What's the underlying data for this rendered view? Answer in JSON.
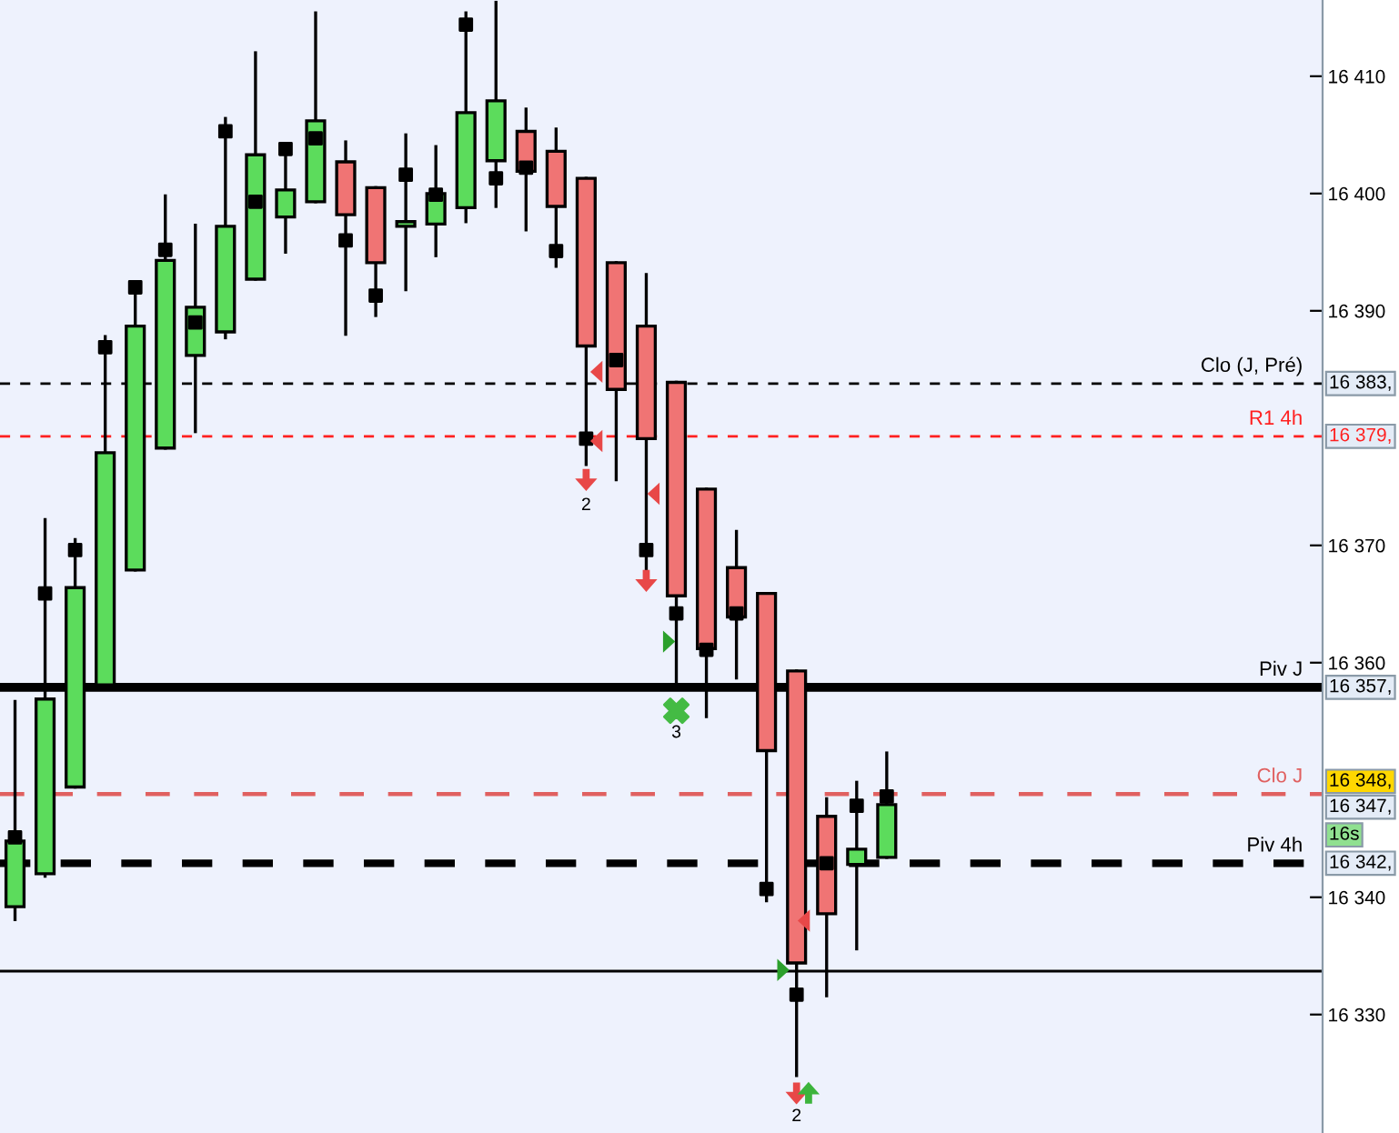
{
  "chart_data": {
    "type": "candlestick",
    "categories": [
      null,
      null,
      null,
      null,
      null,
      null,
      null,
      null,
      null,
      null,
      null,
      null,
      null,
      null,
      null,
      null,
      null,
      null,
      null,
      null,
      null,
      null,
      null,
      null,
      null,
      null,
      null,
      null,
      null,
      null,
      null,
      null,
      null,
      null,
      null,
      null,
      null,
      null,
      null,
      null,
      null,
      null,
      null,
      null
    ],
    "ohlc": [
      [
        16339.2,
        16356.7,
        16338.1,
        16344.8
      ],
      [
        16342.0,
        16372.2,
        16341.8,
        16356.9
      ],
      [
        16349.4,
        16370.5,
        16349.4,
        16366.4
      ],
      [
        16358.1,
        16387.8,
        16358.1,
        16377.9
      ],
      [
        16367.9,
        16392.4,
        16367.9,
        16388.7
      ],
      [
        16378.3,
        16399.8,
        16378.3,
        16394.3
      ],
      [
        16386.2,
        16397.3,
        16379.7,
        16390.3
      ],
      [
        16388.2,
        16406.4,
        16387.7,
        16397.2
      ],
      [
        16392.7,
        16412.0,
        16392.7,
        16403.3
      ],
      [
        16398.0,
        16404.1,
        16395.0,
        16400.3
      ],
      [
        16399.3,
        16415.4,
        16399.3,
        16406.2
      ],
      [
        16402.7,
        16404.4,
        16388.0,
        16398.2
      ],
      [
        16400.5,
        16400.5,
        16389.6,
        16394.1
      ],
      [
        16397.2,
        16405.0,
        16391.8,
        16397.6
      ],
      [
        16397.4,
        16404.0,
        16394.7,
        16400.0
      ],
      [
        16398.8,
        16415.4,
        16397.6,
        16406.9
      ],
      [
        16402.8,
        16416.3,
        16398.9,
        16407.9
      ],
      [
        16405.3,
        16407.2,
        16396.9,
        16401.9
      ],
      [
        16403.6,
        16405.5,
        16393.8,
        16398.9
      ],
      [
        16401.3,
        16401.3,
        16376.9,
        16387.0
      ],
      [
        16394.1,
        16394.1,
        16375.6,
        16383.3
      ],
      [
        16388.7,
        16393.1,
        16368.0,
        16379.1
      ],
      [
        16383.9,
        16383.9,
        16358.1,
        16365.7
      ],
      [
        16374.8,
        16374.8,
        16355.4,
        16361.2
      ],
      [
        16368.1,
        16371.2,
        16358.7,
        16363.9
      ],
      [
        16365.9,
        16365.9,
        16339.7,
        16352.5
      ],
      [
        16359.3,
        16359.3,
        16324.8,
        16334.4
      ],
      [
        16346.9,
        16348.4,
        16331.6,
        16338.6
      ],
      [
        16342.8,
        16349.8,
        16335.6,
        16344.1
      ],
      [
        16343.4,
        16352.3,
        16343.4,
        16347.9
      ],
      null,
      null,
      null,
      null,
      null,
      null,
      null,
      null,
      null,
      null,
      null,
      null,
      null,
      null
    ],
    "colors": [
      "#5cdc5c",
      "#5cdc5c",
      "#5cdc5c",
      "#5cdc5c",
      "#5cdc5c",
      "#5cdc5c",
      "#5cdc5c",
      "#5cdc5c",
      "#5cdc5c",
      "#5cdc5c",
      "#5cdc5c",
      "#f07474",
      "#f07474",
      "#5cdc5c",
      "#5cdc5c",
      "#5cdc5c",
      "#5cdc5c",
      "#f07474",
      "#f07474",
      "#f07474",
      "#f07474",
      "#f07474",
      "#f07474",
      "#f07474",
      "#f07474",
      "#f07474",
      "#f07474",
      "#f07474",
      "#5cdc5c",
      "#5cdc5c",
      null,
      null,
      null,
      null,
      null,
      null,
      null,
      null,
      null,
      null,
      null,
      null,
      null,
      null
    ],
    "series": [
      {
        "type": "scatter",
        "color": "#000000",
        "marker": "square",
        "values": [
          16345.1,
          16365.9,
          16369.6,
          16386.9,
          16392.0,
          16395.2,
          16389.0,
          16405.3,
          16399.3,
          16403.8,
          16404.7,
          16396.0,
          16391.3,
          16401.6,
          16399.9,
          16414.4,
          16401.3,
          16402.2,
          16395.1,
          16379.1,
          16385.8,
          16369.6,
          16364.2,
          16361.1,
          16364.2,
          16340.7,
          16331.7,
          16342.9,
          16347.8,
          16348.6,
          null,
          null,
          null,
          null,
          null,
          null,
          null,
          null,
          null,
          null,
          null,
          null,
          null,
          null
        ]
      }
    ],
    "ylim": [
      16319.9,
      16416.5
    ],
    "yticks": [
      {
        "value": 16410,
        "label": "16 410"
      },
      {
        "value": 16400,
        "label": "16 400"
      },
      {
        "value": 16390,
        "label": "16 390"
      },
      {
        "value": 16370,
        "label": "16 370"
      },
      {
        "value": 16360,
        "label": "16 360"
      },
      {
        "value": 16340,
        "label": "16 340"
      },
      {
        "value": 16330,
        "label": "16 330"
      }
    ],
    "tick_labels": "y",
    "grid": false,
    "ref_lines": [
      {
        "axis": "y",
        "value": 16383.8,
        "label": "Clo (J, Pré)",
        "color": "#000000",
        "line_style": "dashed"
      },
      {
        "axis": "y",
        "value": 16379.3,
        "label": "R1 4h",
        "color": "#ff2020",
        "line_style": "dashed"
      },
      {
        "axis": "y",
        "value": 16357.9,
        "label": "Piv J",
        "color": "#000000",
        "line_style": "solid"
      },
      {
        "axis": "y",
        "value": 16348.8,
        "label": "Clo J",
        "color": "#e06060",
        "line_style": "dashed"
      },
      {
        "axis": "y",
        "value": 16342.9,
        "label": "Piv 4h",
        "color": "#000000",
        "line_style": "dashed"
      },
      {
        "axis": "y",
        "value": 16333.7,
        "label": null,
        "color": "#000000",
        "line_style": "solid"
      }
    ],
    "annotations": [
      "16 383,",
      "16 379,",
      "16 357,",
      "16 348,",
      "16 347,",
      "16s",
      "16 342,",
      "2",
      "3",
      "2"
    ]
  }
}
